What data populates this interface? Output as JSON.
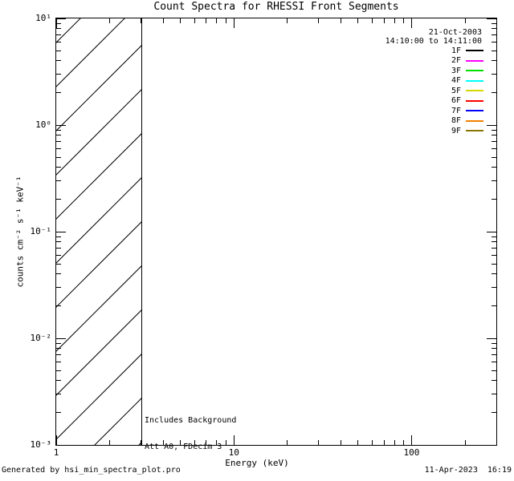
{
  "title": "Count Spectra for RHESSI Front Segments",
  "legend": {
    "date": "21-Oct-2003",
    "time_range": "14:10:00 to 14:11:00",
    "entries": [
      {
        "label": "1F",
        "color": "#000000"
      },
      {
        "label": "2F",
        "color": "#FF00FF"
      },
      {
        "label": "3F",
        "color": "#00E000"
      },
      {
        "label": "4F",
        "color": "#00FFFF"
      },
      {
        "label": "5F",
        "color": "#D6D600"
      },
      {
        "label": "6F",
        "color": "#FF0000"
      },
      {
        "label": "7F",
        "color": "#0000FF"
      },
      {
        "label": "8F",
        "color": "#F08000"
      },
      {
        "label": "9F",
        "color": "#8A7500"
      }
    ]
  },
  "annotations": {
    "line1": "Includes Background",
    "line2": "Att A0, FDecim 3"
  },
  "axes": {
    "x_label": "Energy (keV)",
    "y_label": "counts cm⁻² s⁻¹ keV⁻¹",
    "x_tick_labels": [
      "1",
      "10",
      "100"
    ],
    "y_tick_labels": [
      "10¹",
      "10⁰",
      "10⁻¹",
      "10⁻²",
      "10⁻³"
    ]
  },
  "footer": {
    "left": "Generated by hsi_min_spectra_plot.pro",
    "right": "11-Apr-2023  16:19"
  },
  "chart_data": {
    "type": "line",
    "title": "Count Spectra for RHESSI Front Segments",
    "xlabel": "Energy (keV)",
    "ylabel": "counts cm^-2 s^-1 keV^-1",
    "x_scale": "log",
    "y_scale": "log",
    "xlim": [
      1,
      300
    ],
    "ylim": [
      0.001,
      10
    ],
    "x_major_ticks": [
      1,
      10,
      100
    ],
    "y_major_ticks": [
      10,
      1,
      0.1,
      0.01,
      0.001
    ],
    "grid": false,
    "legend_position": "upper right",
    "legend_header": [
      "21-Oct-2003",
      "14:10:00 to 14:11:00"
    ],
    "series": [
      {
        "name": "1F",
        "color": "#000000",
        "x": [],
        "y": []
      },
      {
        "name": "2F",
        "color": "#FF00FF",
        "x": [],
        "y": []
      },
      {
        "name": "3F",
        "color": "#00E000",
        "x": [],
        "y": []
      },
      {
        "name": "4F",
        "color": "#00FFFF",
        "x": [],
        "y": []
      },
      {
        "name": "5F",
        "color": "#D6D600",
        "x": [],
        "y": []
      },
      {
        "name": "6F",
        "color": "#FF0000",
        "x": [],
        "y": []
      },
      {
        "name": "7F",
        "color": "#0000FF",
        "x": [],
        "y": []
      },
      {
        "name": "8F",
        "color": "#F08000",
        "x": [],
        "y": []
      },
      {
        "name": "9F",
        "color": "#8A7500",
        "x": [],
        "y": []
      }
    ],
    "regions": [
      {
        "type": "hatched",
        "x_start": 1,
        "x_end": 3,
        "style": "diagonal-hatch"
      }
    ],
    "annotations": [
      "Includes Background",
      "Att A0, FDecim 3"
    ]
  }
}
